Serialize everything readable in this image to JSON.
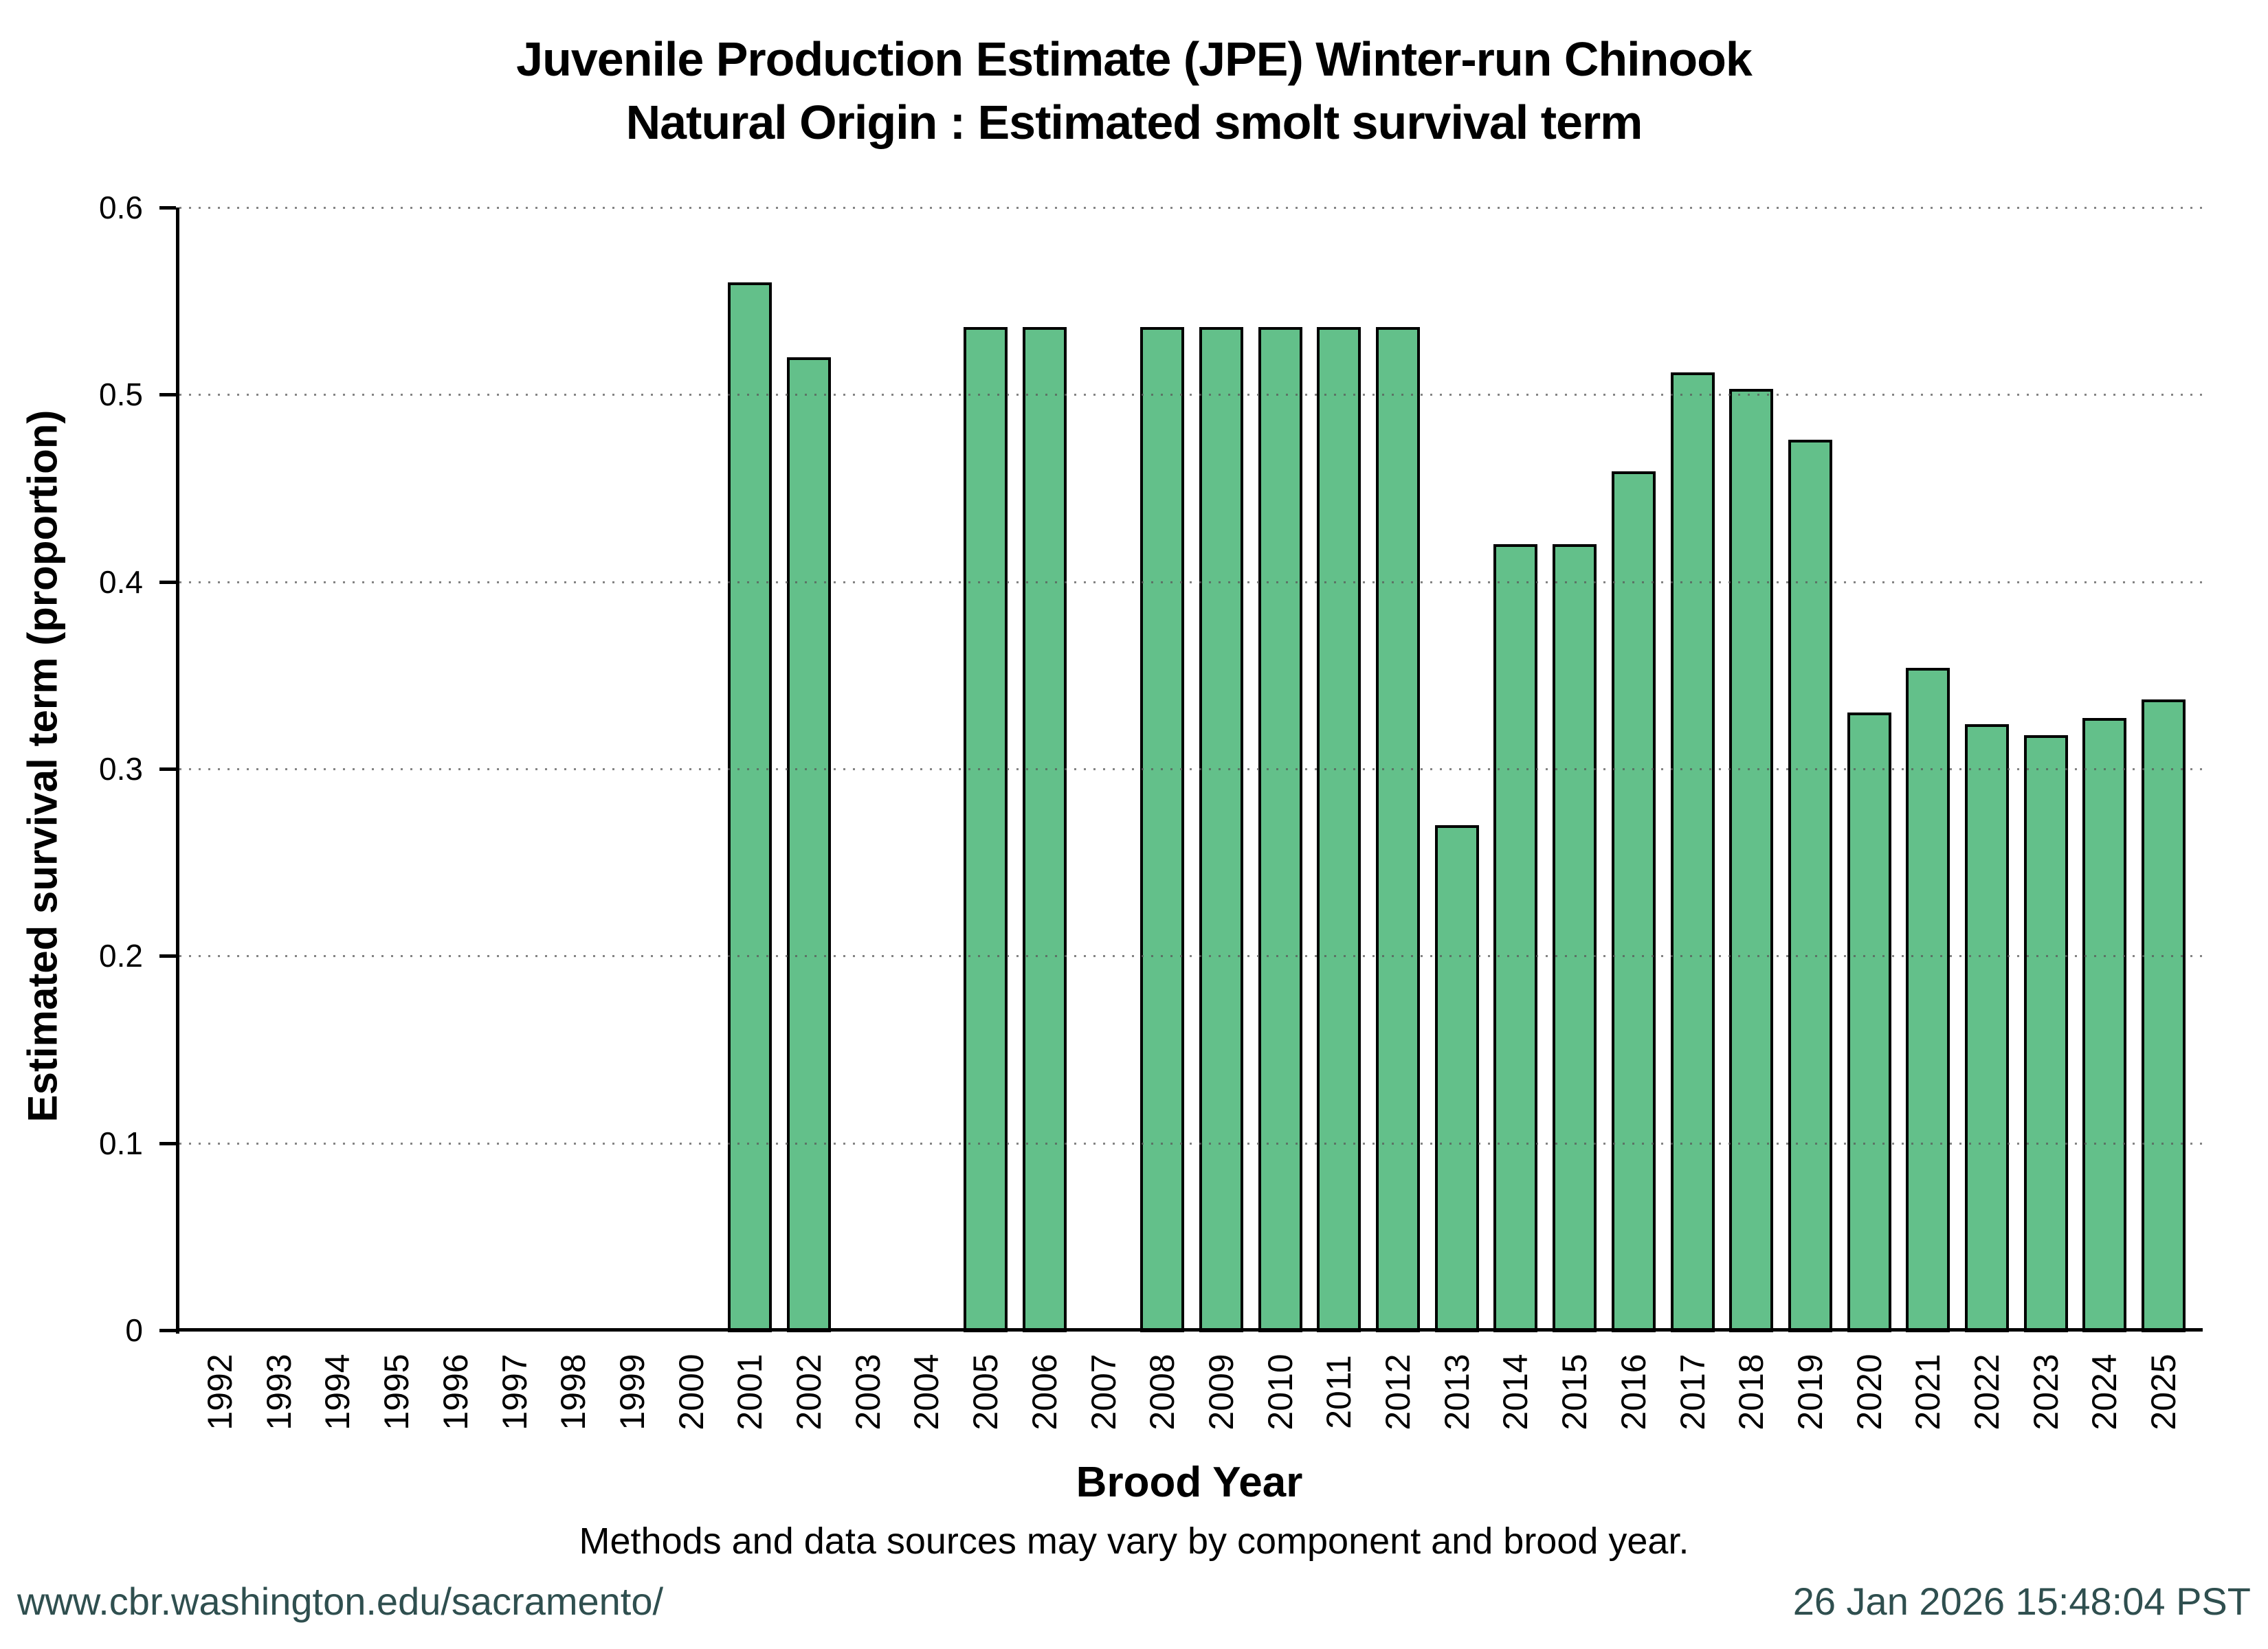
{
  "title": {
    "line1": "Juvenile Production Estimate (JPE) Winter-run Chinook",
    "line2": "Natural Origin : Estimated smolt survival term"
  },
  "chart_data": {
    "type": "bar",
    "title": "Juvenile Production Estimate (JPE) Winter-run Chinook — Natural Origin : Estimated smolt survival term",
    "xlabel": "Brood Year",
    "ylabel": "Estimated survival term (proportion)",
    "ylim": [
      0,
      0.6
    ],
    "ytick_labels": [
      "0",
      "0.1",
      "0.2",
      "0.3",
      "0.4",
      "0.5",
      "0.6"
    ],
    "yticks": [
      0,
      0.1,
      0.2,
      0.3,
      0.4,
      0.5,
      0.6
    ],
    "grid": "horizontal-dotted-over-bars",
    "legend": "none",
    "bar_fill": "#63C08A",
    "bar_stroke": "#000000",
    "gridline_color": "#5a5a5a",
    "categories": [
      1992,
      1993,
      1994,
      1995,
      1996,
      1997,
      1998,
      1999,
      2000,
      2001,
      2002,
      2003,
      2004,
      2005,
      2006,
      2007,
      2008,
      2009,
      2010,
      2011,
      2012,
      2013,
      2014,
      2015,
      2016,
      2017,
      2018,
      2019,
      2020,
      2021,
      2022,
      2023,
      2024,
      2025
    ],
    "values": [
      null,
      null,
      null,
      null,
      null,
      null,
      null,
      null,
      null,
      0.56,
      0.52,
      null,
      null,
      0.536,
      0.536,
      null,
      0.536,
      0.536,
      0.536,
      0.536,
      0.536,
      0.27,
      0.42,
      0.42,
      0.459,
      0.512,
      0.503,
      0.476,
      0.33,
      0.354,
      0.324,
      0.318,
      0.327,
      0.337
    ]
  },
  "caption": "Methods and data sources may vary by component and brood year.",
  "footer": {
    "url": "www.cbr.washington.edu/sacramento/",
    "timestamp": "26 Jan 2026 15:48:04 PST",
    "color": "#2F4F4F"
  }
}
